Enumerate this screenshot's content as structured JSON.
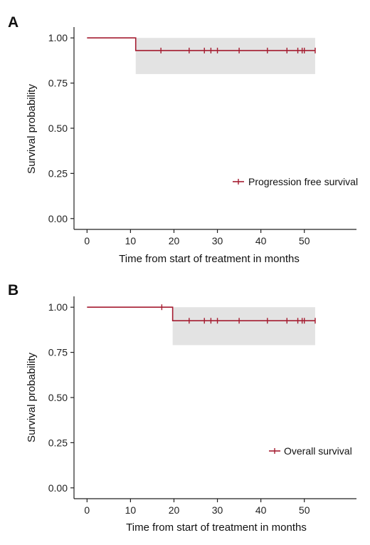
{
  "chart_data": [
    {
      "type": "line",
      "panel_label": "A",
      "xlabel": "Time from start of treatment in months",
      "ylabel": "Survival probability",
      "xlim": [
        -3,
        62
      ],
      "ylim": [
        -0.06,
        1.06
      ],
      "x_ticks": [
        0,
        10,
        20,
        30,
        40,
        50
      ],
      "y_ticks": [
        0.0,
        0.25,
        0.5,
        0.75,
        1.0
      ],
      "y_tick_labels": [
        "0.00",
        "0.25",
        "0.50",
        "0.75",
        "1.00"
      ],
      "legend_position": "right",
      "series": [
        {
          "name": "Progression free survival",
          "color": "#a51c30",
          "step_x": [
            0,
            11.2,
            11.2,
            52.5
          ],
          "step_y": [
            1.0,
            1.0,
            0.93,
            0.93
          ],
          "censor_x": [
            17,
            23.5,
            27,
            28.5,
            30,
            35,
            41.5,
            46,
            48.5,
            49.5,
            50,
            52.5
          ],
          "censor_y": 0.93,
          "ci": {
            "x_start": 11.2,
            "x_end": 52.5,
            "lower": 0.8,
            "upper": 1.0
          }
        }
      ]
    },
    {
      "type": "line",
      "panel_label": "B",
      "xlabel": "Time from start of treatment in months",
      "ylabel": "Survival probability",
      "xlim": [
        -3,
        62
      ],
      "ylim": [
        -0.06,
        1.06
      ],
      "x_ticks": [
        0,
        10,
        20,
        30,
        40,
        50
      ],
      "y_ticks": [
        0.0,
        0.25,
        0.5,
        0.75,
        1.0
      ],
      "y_tick_labels": [
        "0.00",
        "0.25",
        "0.50",
        "0.75",
        "1.00"
      ],
      "legend_position": "right",
      "series": [
        {
          "name": "Overall survival",
          "color": "#a51c30",
          "step_x": [
            0,
            19.7,
            19.7,
            52.5
          ],
          "step_y": [
            1.0,
            1.0,
            0.925,
            0.925
          ],
          "censor_x": [
            17.2
          ],
          "censor_y": 1.0,
          "censor_x_after": [
            23.5,
            27,
            28.5,
            30,
            35,
            41.5,
            46,
            48.5,
            49.5,
            50,
            52.5
          ],
          "censor_y_after": 0.925,
          "ci": {
            "x_start": 19.7,
            "x_end": 52.5,
            "lower": 0.79,
            "upper": 1.0
          }
        }
      ]
    }
  ]
}
